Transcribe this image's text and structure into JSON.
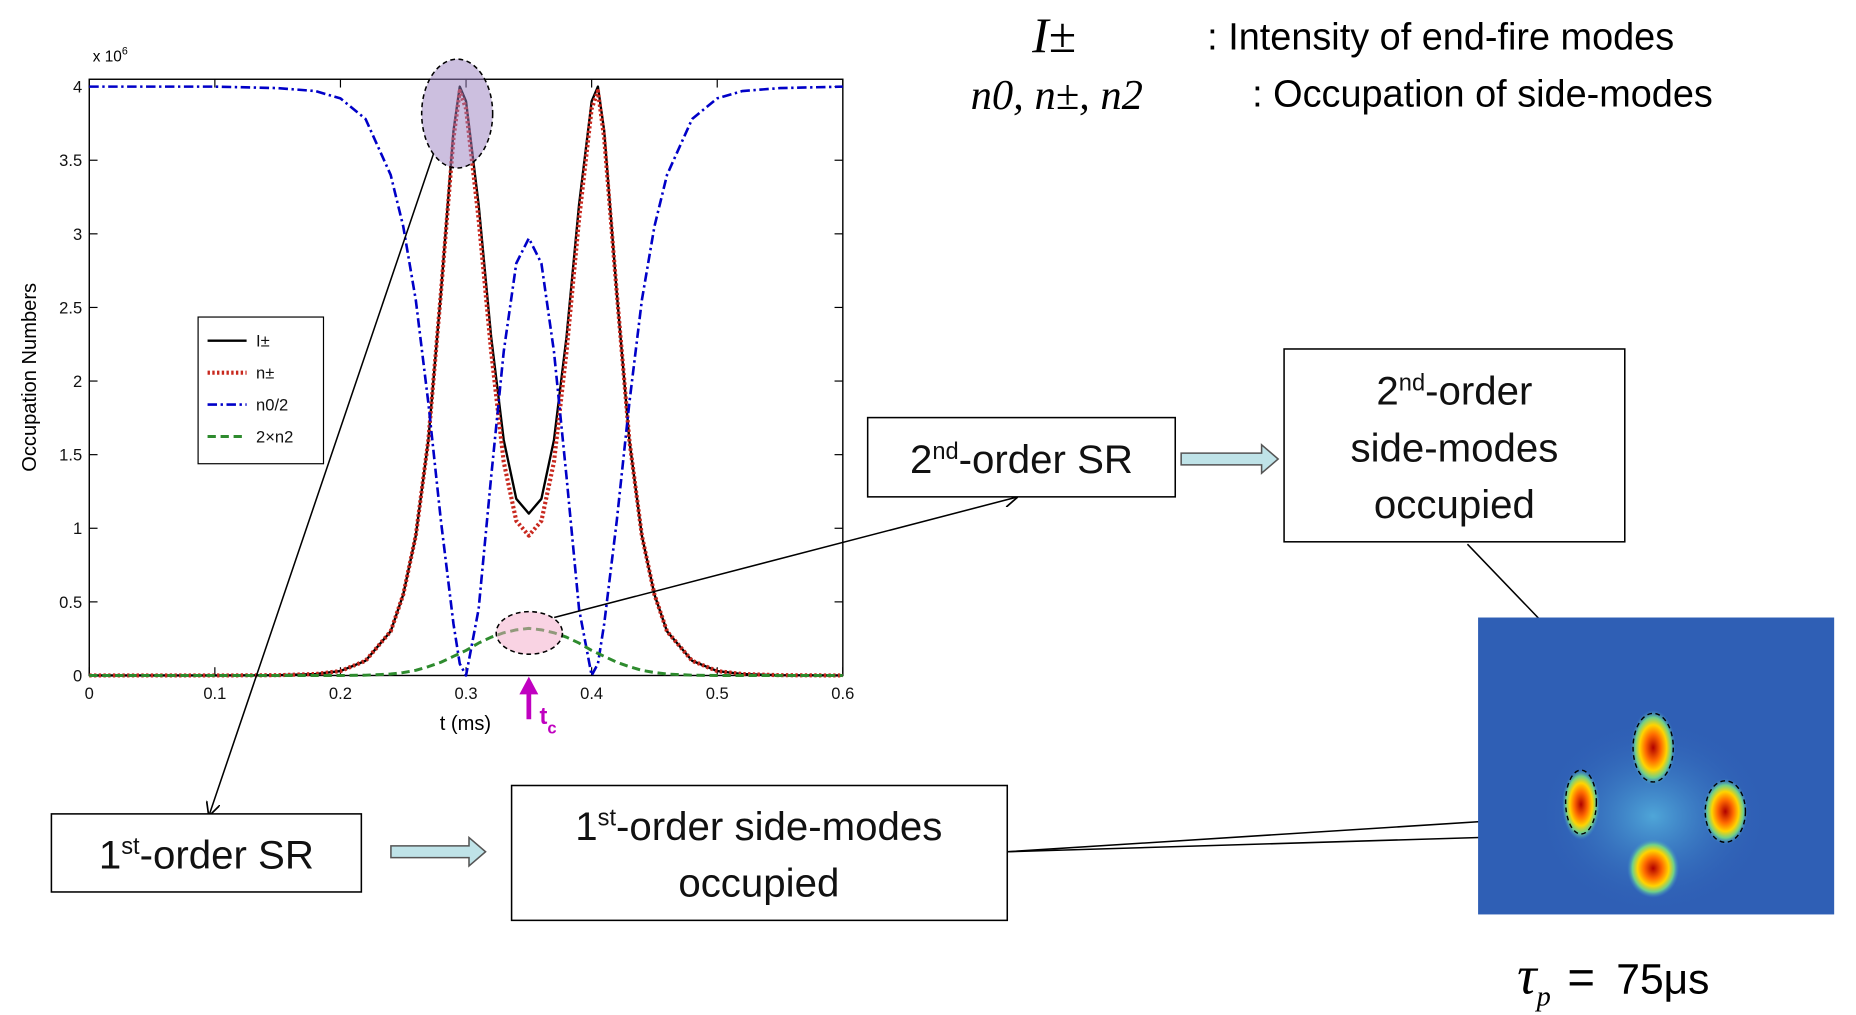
{
  "chart_data": {
    "type": "line",
    "multiplier": "x 10",
    "multiplier_exp": "6",
    "xlabel": "t (ms)",
    "ylabel": "Occupation Numbers",
    "marker_label": "t",
    "marker_label_sub": "c",
    "x": [
      0,
      0.05,
      0.1,
      0.15,
      0.18,
      0.2,
      0.22,
      0.24,
      0.25,
      0.26,
      0.27,
      0.28,
      0.29,
      0.295,
      0.3,
      0.31,
      0.32,
      0.33,
      0.34,
      0.35,
      0.36,
      0.37,
      0.38,
      0.39,
      0.4,
      0.405,
      0.41,
      0.42,
      0.43,
      0.44,
      0.45,
      0.46,
      0.48,
      0.5,
      0.52,
      0.55,
      0.6
    ],
    "series": [
      {
        "name": "I±",
        "color": "#000000",
        "values": [
          0,
          0,
          0,
          0.002,
          0.01,
          0.03,
          0.1,
          0.3,
          0.55,
          0.95,
          1.6,
          2.6,
          3.7,
          4.0,
          3.9,
          3.2,
          2.3,
          1.6,
          1.2,
          1.1,
          1.2,
          1.6,
          2.3,
          3.2,
          3.9,
          4.0,
          3.7,
          2.6,
          1.6,
          0.95,
          0.55,
          0.3,
          0.1,
          0.03,
          0.01,
          0.002,
          0
        ]
      },
      {
        "name": "n±",
        "color": "#c8281e",
        "values": [
          0,
          0,
          0,
          0.002,
          0.01,
          0.03,
          0.1,
          0.3,
          0.55,
          0.95,
          1.6,
          2.6,
          3.65,
          3.97,
          3.85,
          3.1,
          2.2,
          1.45,
          1.05,
          0.95,
          1.05,
          1.45,
          2.2,
          3.1,
          3.85,
          3.97,
          3.65,
          2.6,
          1.6,
          0.95,
          0.55,
          0.3,
          0.1,
          0.03,
          0.01,
          0.002,
          0
        ]
      },
      {
        "name": "n0/2",
        "color": "#0000c8",
        "values": [
          4,
          4,
          4,
          3.99,
          3.97,
          3.92,
          3.78,
          3.4,
          3.05,
          2.55,
          1.85,
          1.05,
          0.35,
          0.08,
          0,
          0.45,
          1.35,
          2.2,
          2.8,
          2.97,
          2.8,
          2.2,
          1.35,
          0.45,
          0,
          0.08,
          0.35,
          1.05,
          1.85,
          2.55,
          3.05,
          3.4,
          3.78,
          3.92,
          3.97,
          3.99,
          4
        ]
      },
      {
        "name": "2×n2",
        "color": "#2e8b2e",
        "values": [
          0,
          0,
          0,
          0,
          0,
          0,
          0.002,
          0.01,
          0.02,
          0.035,
          0.06,
          0.09,
          0.13,
          0.15,
          0.17,
          0.22,
          0.26,
          0.29,
          0.31,
          0.32,
          0.31,
          0.29,
          0.26,
          0.22,
          0.17,
          0.15,
          0.13,
          0.09,
          0.06,
          0.035,
          0.02,
          0.01,
          0.002,
          0,
          0,
          0,
          0
        ]
      }
    ],
    "xlim": [
      0,
      0.6
    ],
    "xticks": [
      0,
      0.1,
      0.2,
      0.3,
      0.4,
      0.5,
      0.6
    ],
    "ylim": [
      0,
      4.05
    ],
    "yticks": [
      0,
      0.5,
      1,
      1.5,
      2,
      2.5,
      3,
      3.5,
      4
    ],
    "marker_x": 0.35
  },
  "definitions": [
    {
      "symbol": "I±",
      "text": ": Intensity of end-fire modes"
    },
    {
      "symbol": "n0, n±, n2",
      "text": ": Occupation of side-modes"
    }
  ],
  "diagram": {
    "second_sr": {
      "ordinal": "2",
      "suffix": "nd",
      "text": "-order SR"
    },
    "second_modes": {
      "ordinal": "2",
      "suffix": "nd",
      "line1": "-order",
      "line2": "side-modes",
      "line3": "occupied"
    },
    "first_sr": {
      "ordinal": "1",
      "suffix": "st",
      "text": "-order SR"
    },
    "first_modes": {
      "ordinal": "1",
      "suffix": "st",
      "line1": "-order side-modes",
      "line2": "occupied"
    },
    "pulse": {
      "symbol": "τ",
      "sub": "p",
      "eq": "=",
      "value": "75μs"
    }
  }
}
